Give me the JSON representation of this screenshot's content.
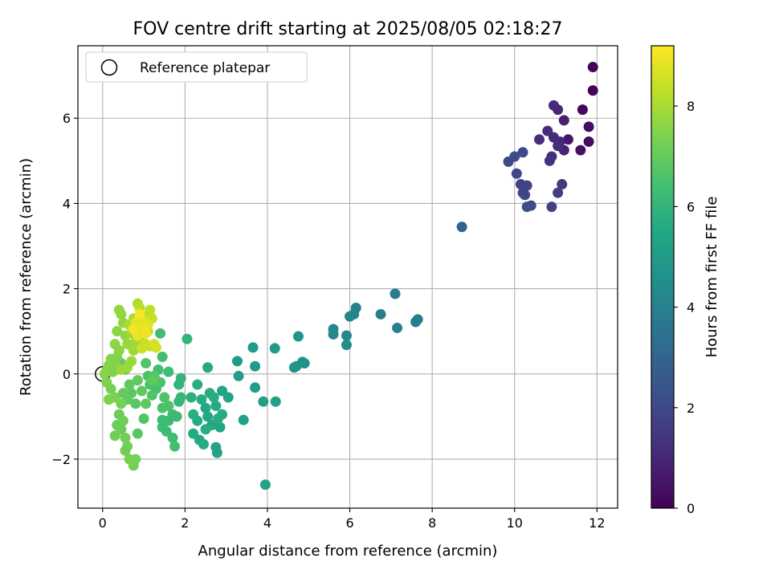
{
  "chart_data": {
    "type": "scatter",
    "title": "FOV centre drift starting at 2025/08/05 02:18:27",
    "xlabel": "Angular distance from reference (arcmin)",
    "ylabel": "Rotation from reference (arcmin)",
    "xlim": [
      -0.6,
      12.5
    ],
    "ylim": [
      -3.15,
      7.7
    ],
    "x_ticks": [
      0,
      2,
      4,
      6,
      8,
      10,
      12
    ],
    "y_ticks": [
      -2,
      0,
      2,
      4,
      6
    ],
    "grid": true,
    "legend": {
      "position": "top-left",
      "entries": [
        "Reference platepar"
      ]
    },
    "reference_point": [
      0,
      0
    ],
    "colorbar": {
      "label": "Hours from first FF file",
      "range": [
        0,
        9.2
      ],
      "ticks": [
        0,
        2,
        4,
        6,
        8
      ],
      "colormap": "viridis"
    },
    "points": [
      [
        11.9,
        7.2,
        0.1
      ],
      [
        11.9,
        6.65,
        0.1
      ],
      [
        11.65,
        6.2,
        0.2
      ],
      [
        11.8,
        5.8,
        0.3
      ],
      [
        11.8,
        5.45,
        0.3
      ],
      [
        11.6,
        5.25,
        0.4
      ],
      [
        11.3,
        5.5,
        0.6
      ],
      [
        11.2,
        5.95,
        0.8
      ],
      [
        11.2,
        5.25,
        0.9
      ],
      [
        11.05,
        6.2,
        1.0
      ],
      [
        10.95,
        6.3,
        1.1
      ],
      [
        11.1,
        5.45,
        1.0
      ],
      [
        10.95,
        5.55,
        1.1
      ],
      [
        10.8,
        5.7,
        1.1
      ],
      [
        10.9,
        5.1,
        1.2
      ],
      [
        10.85,
        5.0,
        1.3
      ],
      [
        10.6,
        5.5,
        1.2
      ],
      [
        11.05,
        5.35,
        1.2
      ],
      [
        11.15,
        4.45,
        1.5
      ],
      [
        11.05,
        4.25,
        1.6
      ],
      [
        10.9,
        3.92,
        1.7
      ],
      [
        10.3,
        4.42,
        1.8
      ],
      [
        10.2,
        4.25,
        1.8
      ],
      [
        10.25,
        4.2,
        1.9
      ],
      [
        10.15,
        4.45,
        1.8
      ],
      [
        10.05,
        4.7,
        1.9
      ],
      [
        9.85,
        4.98,
        2.0
      ],
      [
        10.0,
        5.1,
        2.1
      ],
      [
        10.2,
        5.2,
        2.0
      ],
      [
        10.4,
        3.95,
        2.1
      ],
      [
        10.3,
        3.92,
        2.2
      ],
      [
        8.72,
        3.45,
        2.9
      ],
      [
        7.1,
        1.88,
        3.8
      ],
      [
        7.65,
        1.28,
        3.9
      ],
      [
        7.6,
        1.22,
        3.9
      ],
      [
        7.15,
        1.08,
        4.0
      ],
      [
        6.75,
        1.4,
        4.0
      ],
      [
        6.15,
        1.55,
        4.1
      ],
      [
        6.1,
        1.4,
        4.1
      ],
      [
        6.0,
        1.35,
        4.2
      ],
      [
        5.6,
        1.05,
        4.3
      ],
      [
        5.6,
        0.93,
        4.3
      ],
      [
        5.92,
        0.9,
        4.3
      ],
      [
        5.92,
        0.68,
        4.4
      ],
      [
        4.85,
        0.28,
        4.6
      ],
      [
        4.9,
        0.25,
        4.6
      ],
      [
        4.7,
        0.18,
        4.6
      ],
      [
        4.65,
        0.15,
        4.7
      ],
      [
        4.75,
        0.88,
        4.8
      ],
      [
        4.18,
        0.6,
        4.9
      ],
      [
        3.65,
        0.62,
        5.0
      ],
      [
        3.7,
        0.18,
        5.0
      ],
      [
        3.27,
        0.3,
        5.0
      ],
      [
        3.3,
        -0.05,
        5.1
      ],
      [
        3.7,
        -0.32,
        5.1
      ],
      [
        3.9,
        -0.65,
        5.2
      ],
      [
        4.2,
        -0.65,
        5.2
      ],
      [
        3.42,
        -1.08,
        5.3
      ],
      [
        3.95,
        -2.6,
        5.3
      ],
      [
        2.75,
        -1.72,
        5.3
      ],
      [
        2.78,
        -1.85,
        5.3
      ],
      [
        2.85,
        -1.25,
        5.4
      ],
      [
        2.9,
        -0.4,
        5.4
      ],
      [
        3.05,
        -0.55,
        5.4
      ],
      [
        2.55,
        0.15,
        5.5
      ],
      [
        2.5,
        -0.8,
        5.5
      ],
      [
        2.55,
        -1.0,
        5.5
      ],
      [
        2.65,
        -1.2,
        5.5
      ],
      [
        2.35,
        -1.55,
        5.6
      ],
      [
        2.45,
        -1.65,
        5.6
      ],
      [
        2.2,
        -1.4,
        5.6
      ],
      [
        2.3,
        -1.1,
        5.6
      ],
      [
        2.4,
        -0.6,
        5.7
      ],
      [
        2.3,
        -0.25,
        5.7
      ],
      [
        2.7,
        -0.55,
        5.7
      ],
      [
        2.75,
        -0.75,
        5.6
      ],
      [
        2.6,
        -0.45,
        5.7
      ],
      [
        2.8,
        -1.05,
        5.7
      ],
      [
        2.9,
        -0.95,
        5.6
      ],
      [
        2.5,
        -1.3,
        5.7
      ],
      [
        2.2,
        -0.95,
        5.8
      ],
      [
        2.15,
        -0.55,
        5.8
      ],
      [
        2.05,
        0.82,
        6.0
      ],
      [
        1.9,
        -0.1,
        6.0
      ],
      [
        1.85,
        -0.25,
        6.0
      ],
      [
        1.9,
        -0.55,
        6.1
      ],
      [
        1.85,
        -0.65,
        6.1
      ],
      [
        1.8,
        -1.0,
        6.2
      ],
      [
        1.7,
        -0.95,
        6.2
      ],
      [
        1.6,
        -1.1,
        6.2
      ],
      [
        1.45,
        -1.08,
        6.3
      ],
      [
        1.45,
        -1.25,
        6.3
      ],
      [
        1.55,
        -1.35,
        6.3
      ],
      [
        1.7,
        -1.5,
        6.3
      ],
      [
        1.75,
        -1.7,
        6.4
      ],
      [
        1.6,
        0.05,
        6.3
      ],
      [
        1.4,
        0.95,
        6.4
      ],
      [
        1.45,
        0.4,
        6.4
      ],
      [
        1.35,
        0.1,
        6.4
      ],
      [
        1.4,
        -0.2,
        6.5
      ],
      [
        1.3,
        -0.35,
        6.5
      ],
      [
        1.15,
        -0.25,
        6.5
      ],
      [
        1.1,
        -0.05,
        6.6
      ],
      [
        1.2,
        -0.5,
        6.6
      ],
      [
        1.5,
        -0.55,
        6.6
      ],
      [
        1.6,
        -0.75,
        6.6
      ],
      [
        1.45,
        -0.8,
        6.6
      ],
      [
        1.3,
        -0.15,
        6.7
      ],
      [
        1.05,
        0.25,
        6.7
      ],
      [
        1.0,
        -1.05,
        6.7
      ],
      [
        0.85,
        -1.4,
        6.8
      ],
      [
        0.8,
        -0.7,
        6.8
      ],
      [
        0.7,
        -0.45,
        6.8
      ],
      [
        0.65,
        -0.25,
        6.9
      ],
      [
        0.85,
        -0.15,
        6.9
      ],
      [
        0.95,
        -0.4,
        6.9
      ],
      [
        1.05,
        -0.7,
        6.9
      ],
      [
        1.2,
        -0.15,
        6.9
      ],
      [
        1.25,
        -0.05,
        6.8
      ],
      [
        0.6,
        -0.6,
        7.0
      ],
      [
        0.5,
        -0.45,
        7.0
      ],
      [
        0.45,
        0.25,
        7.0
      ],
      [
        0.55,
        0.1,
        7.1
      ],
      [
        0.4,
        -0.95,
        7.1
      ],
      [
        0.35,
        -1.2,
        7.1
      ],
      [
        0.45,
        -1.3,
        7.1
      ],
      [
        0.3,
        -1.45,
        7.2
      ],
      [
        0.55,
        -1.5,
        7.2
      ],
      [
        0.6,
        -1.7,
        7.2
      ],
      [
        0.55,
        -1.8,
        7.2
      ],
      [
        0.65,
        -2.0,
        7.3
      ],
      [
        0.8,
        -2.0,
        7.3
      ],
      [
        0.75,
        -2.15,
        7.3
      ],
      [
        0.5,
        -1.1,
        7.2
      ],
      [
        0.45,
        -0.7,
        7.3
      ],
      [
        0.3,
        -0.55,
        7.3
      ],
      [
        0.2,
        -0.35,
        7.3
      ],
      [
        0.15,
        -0.6,
        7.4
      ],
      [
        0.25,
        0.05,
        7.4
      ],
      [
        0.1,
        0.1,
        7.4
      ],
      [
        0.1,
        -0.2,
        7.4
      ],
      [
        0.05,
        0.0,
        7.5
      ],
      [
        0.15,
        0.2,
        7.5
      ],
      [
        0.2,
        0.35,
        7.5
      ],
      [
        0.3,
        0.25,
        7.5
      ],
      [
        0.35,
        0.4,
        7.5
      ],
      [
        0.4,
        0.55,
        7.6
      ],
      [
        0.3,
        0.7,
        7.6
      ],
      [
        0.35,
        1.0,
        7.6
      ],
      [
        0.4,
        1.5,
        7.7
      ],
      [
        0.45,
        1.4,
        7.7
      ],
      [
        0.5,
        1.2,
        7.7
      ],
      [
        0.55,
        0.9,
        7.7
      ],
      [
        0.6,
        0.7,
        7.8
      ],
      [
        0.45,
        0.1,
        7.8
      ],
      [
        0.6,
        0.15,
        7.8
      ],
      [
        0.7,
        0.3,
        7.8
      ],
      [
        0.75,
        0.55,
        7.9
      ],
      [
        0.8,
        0.75,
        7.9
      ],
      [
        0.7,
        0.95,
        7.9
      ],
      [
        0.65,
        1.15,
        8.0
      ],
      [
        0.75,
        1.3,
        8.0
      ],
      [
        0.85,
        1.1,
        8.0
      ],
      [
        0.9,
        0.85,
        8.1
      ],
      [
        0.85,
        1.65,
        8.1
      ],
      [
        0.9,
        1.55,
        8.2
      ],
      [
        1.0,
        1.35,
        8.2
      ],
      [
        1.05,
        1.2,
        8.2
      ],
      [
        1.1,
        1.0,
        8.3
      ],
      [
        0.95,
        1.05,
        8.3
      ],
      [
        1.15,
        1.5,
        8.3
      ],
      [
        1.2,
        1.3,
        8.4
      ],
      [
        1.05,
        0.7,
        8.4
      ],
      [
        0.95,
        0.6,
        8.5
      ],
      [
        1.15,
        0.65,
        8.5
      ],
      [
        1.25,
        0.7,
        8.6
      ],
      [
        1.3,
        0.62,
        8.6
      ],
      [
        1.0,
        1.25,
        8.7
      ],
      [
        0.8,
        1.2,
        8.7
      ],
      [
        0.9,
        1.3,
        8.8
      ],
      [
        1.1,
        1.15,
        8.8
      ],
      [
        0.85,
        0.9,
        8.9
      ],
      [
        0.95,
        1.1,
        8.9
      ],
      [
        1.05,
        0.95,
        9.0
      ],
      [
        0.75,
        1.05,
        9.0
      ],
      [
        0.9,
        1.4,
        9.1
      ]
    ]
  }
}
